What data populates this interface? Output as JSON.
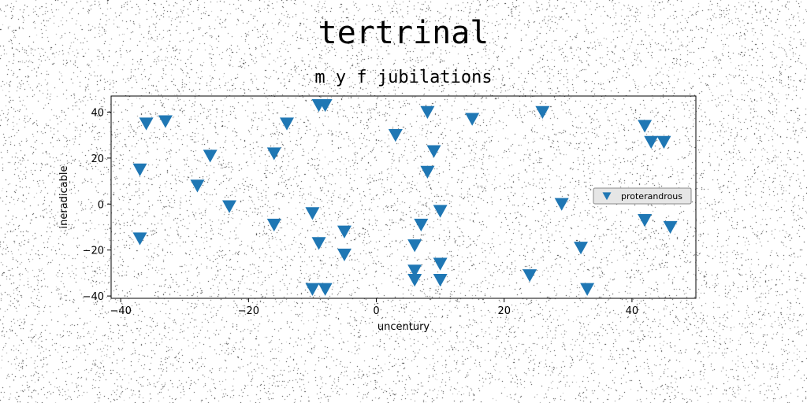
{
  "colors": {
    "marker": "#1f77b4",
    "legend_bg": "#e6e6e6"
  },
  "chart_data": {
    "type": "scatter",
    "title": "tertrinal",
    "subtitle": "m y f jubilations",
    "xlabel": "uncentury",
    "ylabel": "ineradicable",
    "xlim": [
      -41.5,
      50
    ],
    "ylim": [
      -41,
      47
    ],
    "xticks": [
      -40,
      -20,
      0,
      20,
      40
    ],
    "yticks": [
      -40,
      -20,
      0,
      20,
      40
    ],
    "grid": false,
    "legend_position": "center-right",
    "marker": "triangle-down",
    "series": [
      {
        "name": "proterandrous",
        "points": [
          [
            -37,
            15
          ],
          [
            -37,
            -15
          ],
          [
            -36,
            35
          ],
          [
            -33,
            36
          ],
          [
            -28,
            8
          ],
          [
            -26,
            21
          ],
          [
            -23,
            -1
          ],
          [
            -16,
            22
          ],
          [
            -16,
            -9
          ],
          [
            -14,
            35
          ],
          [
            -10,
            -4
          ],
          [
            -10,
            -37
          ],
          [
            -9,
            -17
          ],
          [
            -9,
            43
          ],
          [
            -8,
            43
          ],
          [
            -8,
            -37
          ],
          [
            -5,
            -12
          ],
          [
            -5,
            -22
          ],
          [
            3,
            30
          ],
          [
            6,
            -18
          ],
          [
            6,
            -29
          ],
          [
            6,
            -33
          ],
          [
            7,
            -9
          ],
          [
            8,
            40
          ],
          [
            8,
            14
          ],
          [
            9,
            23
          ],
          [
            10,
            -3
          ],
          [
            10,
            -26
          ],
          [
            10,
            -33
          ],
          [
            15,
            37
          ],
          [
            24,
            -31
          ],
          [
            26,
            40
          ],
          [
            29,
            0
          ],
          [
            32,
            -19
          ],
          [
            33,
            -37
          ],
          [
            42,
            34
          ],
          [
            42,
            -7
          ],
          [
            43,
            27
          ],
          [
            45,
            27
          ],
          [
            46,
            -10
          ]
        ]
      }
    ]
  }
}
